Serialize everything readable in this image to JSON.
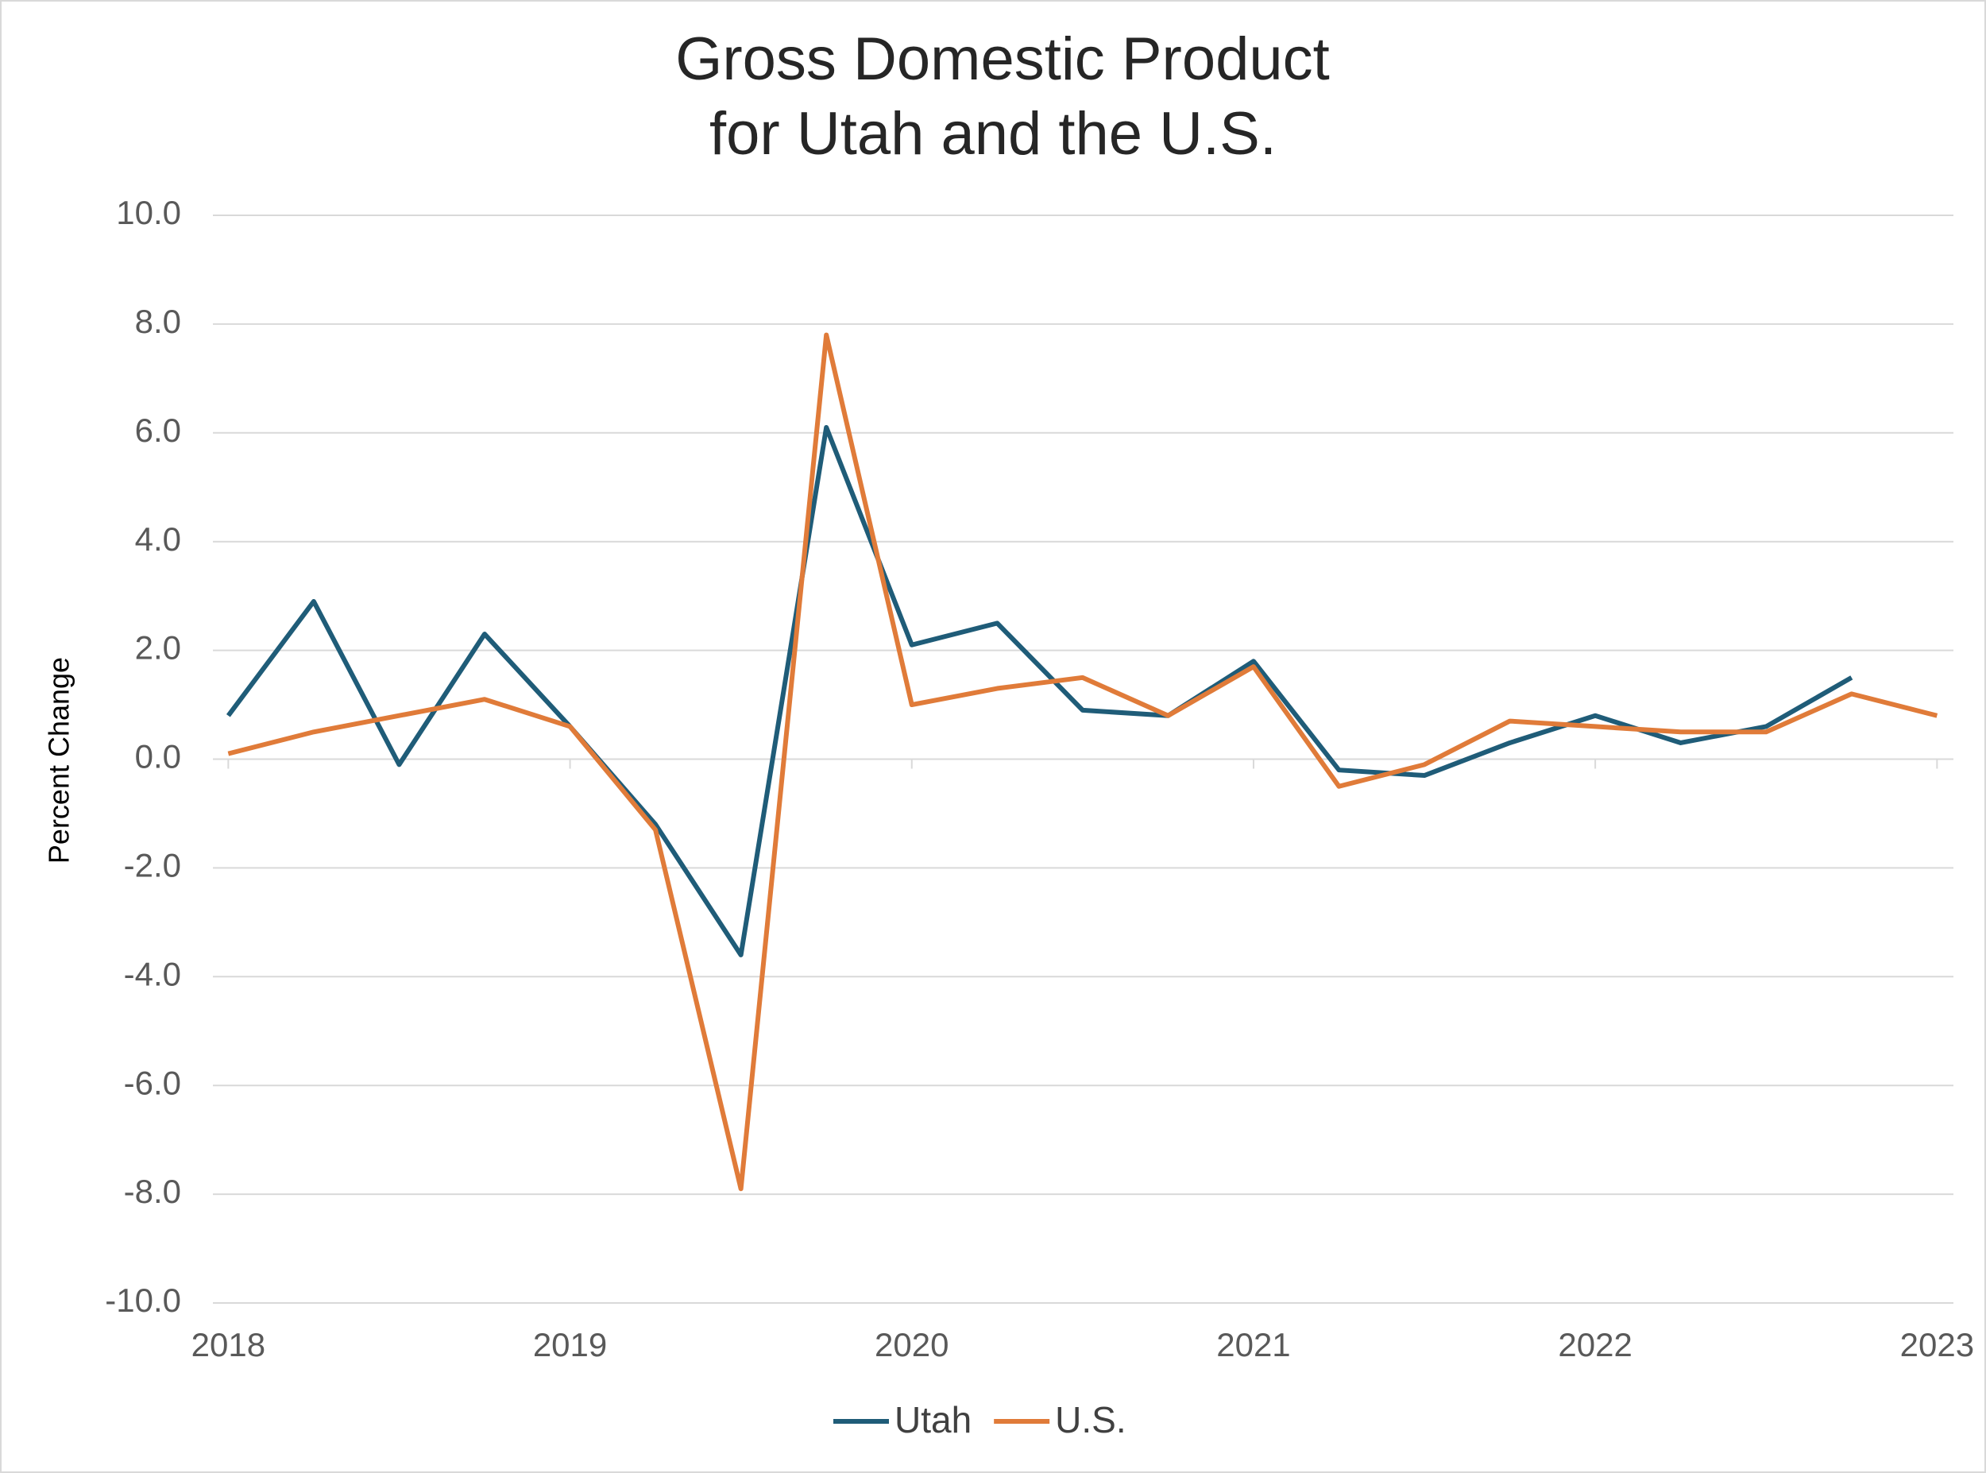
{
  "chart_data": {
    "type": "line",
    "title": [
      "Gross Domestic Product",
      "for Utah and the U.S."
    ],
    "y_label": "Percent Change",
    "x": [
      2018,
      2018.25,
      2018.5,
      2018.75,
      2019,
      2019.25,
      2019.5,
      2019.75,
      2020,
      2020.25,
      2020.5,
      2020.75,
      2021,
      2021.25,
      2021.5,
      2021.75,
      2022,
      2022.25,
      2022.5,
      2022.75,
      2023
    ],
    "series": [
      {
        "name": "Utah",
        "color": "#1f5c78",
        "values": [
          0.8,
          2.9,
          -0.1,
          2.3,
          0.6,
          -1.2,
          -3.6,
          6.1,
          2.1,
          2.5,
          0.9,
          0.8,
          1.8,
          -0.2,
          -0.3,
          0.3,
          0.8,
          0.3,
          0.6,
          1.5,
          null
        ]
      },
      {
        "name": "U.S.",
        "color": "#e07b39",
        "values": [
          0.1,
          0.5,
          0.8,
          1.1,
          0.6,
          -1.3,
          -7.9,
          7.8,
          1.0,
          1.3,
          1.5,
          0.8,
          1.7,
          -0.5,
          -0.1,
          0.7,
          0.6,
          0.5,
          0.5,
          1.2,
          0.8
        ]
      }
    ],
    "xlim": [
      2017.955,
      2023.048
    ],
    "xticks": [
      2018,
      2019,
      2020,
      2021,
      2022,
      2023
    ],
    "ylim": [
      -10,
      10
    ],
    "yticks": [
      {
        "value": -10,
        "label": "-10.0"
      },
      {
        "value": -8,
        "label": "-8.0"
      },
      {
        "value": -6,
        "label": "-6.0"
      },
      {
        "value": -4,
        "label": "-4.0"
      },
      {
        "value": -2,
        "label": "-2.0"
      },
      {
        "value": 0,
        "label": "0.0"
      },
      {
        "value": 2,
        "label": "2.0"
      },
      {
        "value": 4,
        "label": "4.0"
      },
      {
        "value": 6,
        "label": "6.0"
      },
      {
        "value": 8,
        "label": "8.0"
      },
      {
        "value": 10,
        "label": "10.0"
      }
    ],
    "grid": true,
    "legend": "bottom"
  }
}
